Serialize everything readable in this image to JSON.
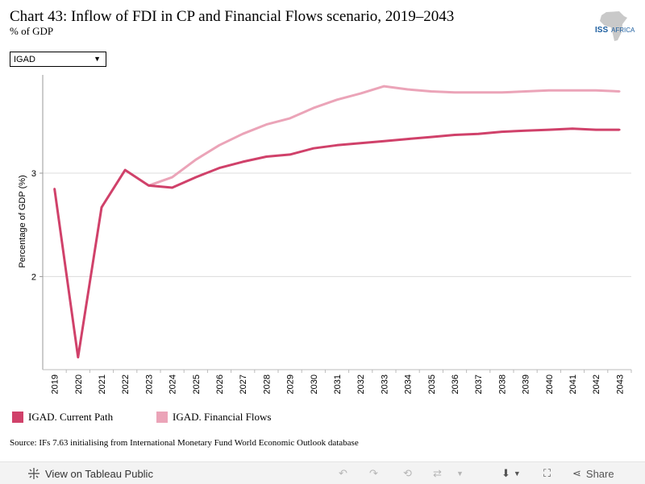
{
  "header": {
    "title": "Chart 43: Inflow of FDI in CP and Financial Flows scenario, 2019–2043",
    "subtitle": "% of GDP",
    "logo_text": "ISS AFRICA"
  },
  "filter": {
    "selected": "IGAD"
  },
  "chart_data": {
    "type": "line",
    "title": "Chart 43: Inflow of FDI in CP and Financial Flows scenario, 2019–2043",
    "subtitle": "% of GDP",
    "xlabel": "",
    "ylabel": "Percentage of GDP (%)",
    "ylim": [
      1.1,
      3.95
    ],
    "yticks": [
      2,
      3
    ],
    "grid": true,
    "legend_position": "bottom-left",
    "x": [
      "2019",
      "2020",
      "2021",
      "2022",
      "2023",
      "2024",
      "2025",
      "2026",
      "2027",
      "2028",
      "2029",
      "2030",
      "2031",
      "2032",
      "2033",
      "2034",
      "2035",
      "2036",
      "2037",
      "2038",
      "2039",
      "2040",
      "2041",
      "2042",
      "2043"
    ],
    "series": [
      {
        "name": "IGAD. Current Path",
        "color": "#d0416a",
        "values": [
          2.85,
          1.22,
          2.67,
          3.03,
          2.88,
          2.86,
          2.96,
          3.05,
          3.11,
          3.16,
          3.18,
          3.24,
          3.27,
          3.29,
          3.31,
          3.33,
          3.35,
          3.37,
          3.38,
          3.4,
          3.41,
          3.42,
          3.43,
          3.42,
          3.42
        ]
      },
      {
        "name": "IGAD. Financial Flows",
        "color": "#eba4b8",
        "values": [
          null,
          null,
          null,
          null,
          2.88,
          2.96,
          3.13,
          3.27,
          3.38,
          3.47,
          3.53,
          3.63,
          3.71,
          3.77,
          3.84,
          3.81,
          3.79,
          3.78,
          3.78,
          3.78,
          3.79,
          3.8,
          3.8,
          3.8,
          3.79
        ]
      }
    ]
  },
  "legend": {
    "items": [
      {
        "label": "IGAD. Current Path",
        "color": "#d0416a"
      },
      {
        "label": "IGAD. Financial Flows",
        "color": "#eba4b8"
      }
    ]
  },
  "source": "Source: IFs 7.63 initialising from International Monetary Fund World Economic Outlook database",
  "toolbar": {
    "view_label": "View on Tableau Public",
    "share_label": "Share"
  }
}
